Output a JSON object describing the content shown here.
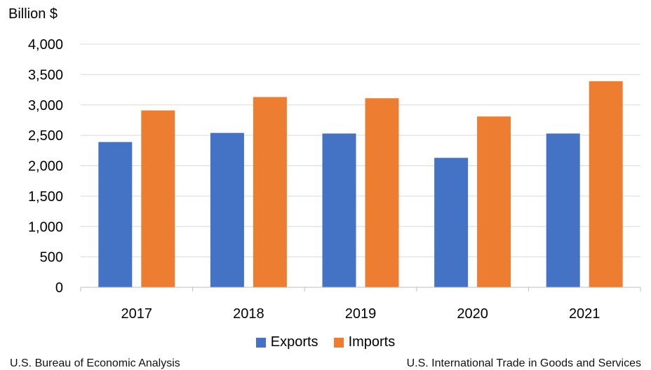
{
  "chart_data": {
    "type": "bar",
    "ylabel": "Billion $",
    "ylim": [
      0,
      4000
    ],
    "ytick_step": 500,
    "y_ticks": [
      "0",
      "500",
      "1,000",
      "1,500",
      "2,000",
      "2,500",
      "3,000",
      "3,500",
      "4,000"
    ],
    "categories": [
      "2017",
      "2018",
      "2019",
      "2020",
      "2021"
    ],
    "series": [
      {
        "name": "Exports",
        "color": "#4472c4",
        "values": [
          2390,
          2540,
          2530,
          2130,
          2530
        ]
      },
      {
        "name": "Imports",
        "color": "#ed7d31",
        "values": [
          2910,
          3130,
          3110,
          2810,
          3390
        ]
      }
    ],
    "grid": true,
    "legend_position": "bottom"
  },
  "sources": {
    "left": "U.S. Bureau of Economic Analysis",
    "right": "U.S. International Trade in Goods and Services"
  }
}
